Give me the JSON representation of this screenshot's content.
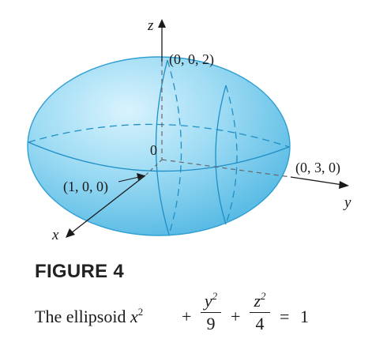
{
  "axes": {
    "x": "x",
    "y": "y",
    "z": "z"
  },
  "points": {
    "origin": "0",
    "top": "(0, 0, 2)",
    "right": "(0, 3, 0)",
    "front": "(1, 0, 0)"
  },
  "figure_title": "FIGURE 4",
  "caption": {
    "prefix": "The ellipsoid",
    "var_x": "x",
    "exp_x": "2",
    "plus1": "+",
    "frac1_num_var": "y",
    "frac1_num_exp": "2",
    "frac1_den": "9",
    "plus2": "+",
    "frac2_num_var": "z",
    "frac2_num_exp": "2",
    "frac2_den": "4",
    "equals": "=",
    "rhs": "1"
  },
  "colors": {
    "body_light": "#cfeefb",
    "body_mid": "#7fd3f2",
    "body_dark": "#3aa9dc",
    "outline": "#2f9fd3",
    "curve": "#1f8fc6",
    "axis": "#1a1a1a",
    "hidden_axis": "#666666"
  }
}
